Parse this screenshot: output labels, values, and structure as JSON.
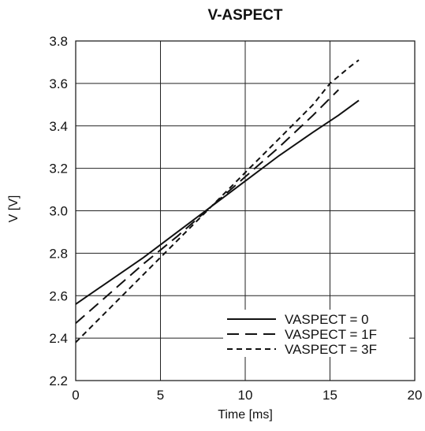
{
  "chart_data": {
    "type": "line",
    "title": "V-ASPECT",
    "xlabel": "Time [ms]",
    "ylabel": "V [V]",
    "xlim": [
      0,
      20
    ],
    "ylim": [
      2.2,
      3.8
    ],
    "xticks": [
      "0",
      "5",
      "10",
      "15",
      "20"
    ],
    "yticks": [
      "2.2",
      "2.4",
      "2.6",
      "2.8",
      "3.0",
      "3.2",
      "3.4",
      "3.6",
      "3.8"
    ],
    "grid": true,
    "legend_position": "bottom-right",
    "series": [
      {
        "name": "VASPECT = 0",
        "dash": "solid",
        "x": [
          0,
          2,
          4,
          6,
          8,
          10,
          12,
          14,
          15.5,
          16.7
        ],
        "y": [
          2.56,
          2.67,
          2.78,
          2.9,
          3.02,
          3.14,
          3.26,
          3.37,
          3.45,
          3.52
        ]
      },
      {
        "name": "VASPECT = 1F",
        "dash": "long-dash",
        "x": [
          0,
          2,
          4,
          6,
          8,
          10,
          12,
          14,
          15.5
        ],
        "y": [
          2.47,
          2.61,
          2.75,
          2.88,
          3.02,
          3.16,
          3.3,
          3.45,
          3.57
        ]
      },
      {
        "name": "VASPECT = 3F",
        "dash": "short-dash",
        "x": [
          0,
          2,
          4,
          6,
          8,
          10,
          12,
          14,
          15,
          16.2,
          16.7
        ],
        "y": [
          2.38,
          2.54,
          2.7,
          2.86,
          3.02,
          3.18,
          3.34,
          3.5,
          3.6,
          3.68,
          3.71
        ]
      }
    ]
  }
}
